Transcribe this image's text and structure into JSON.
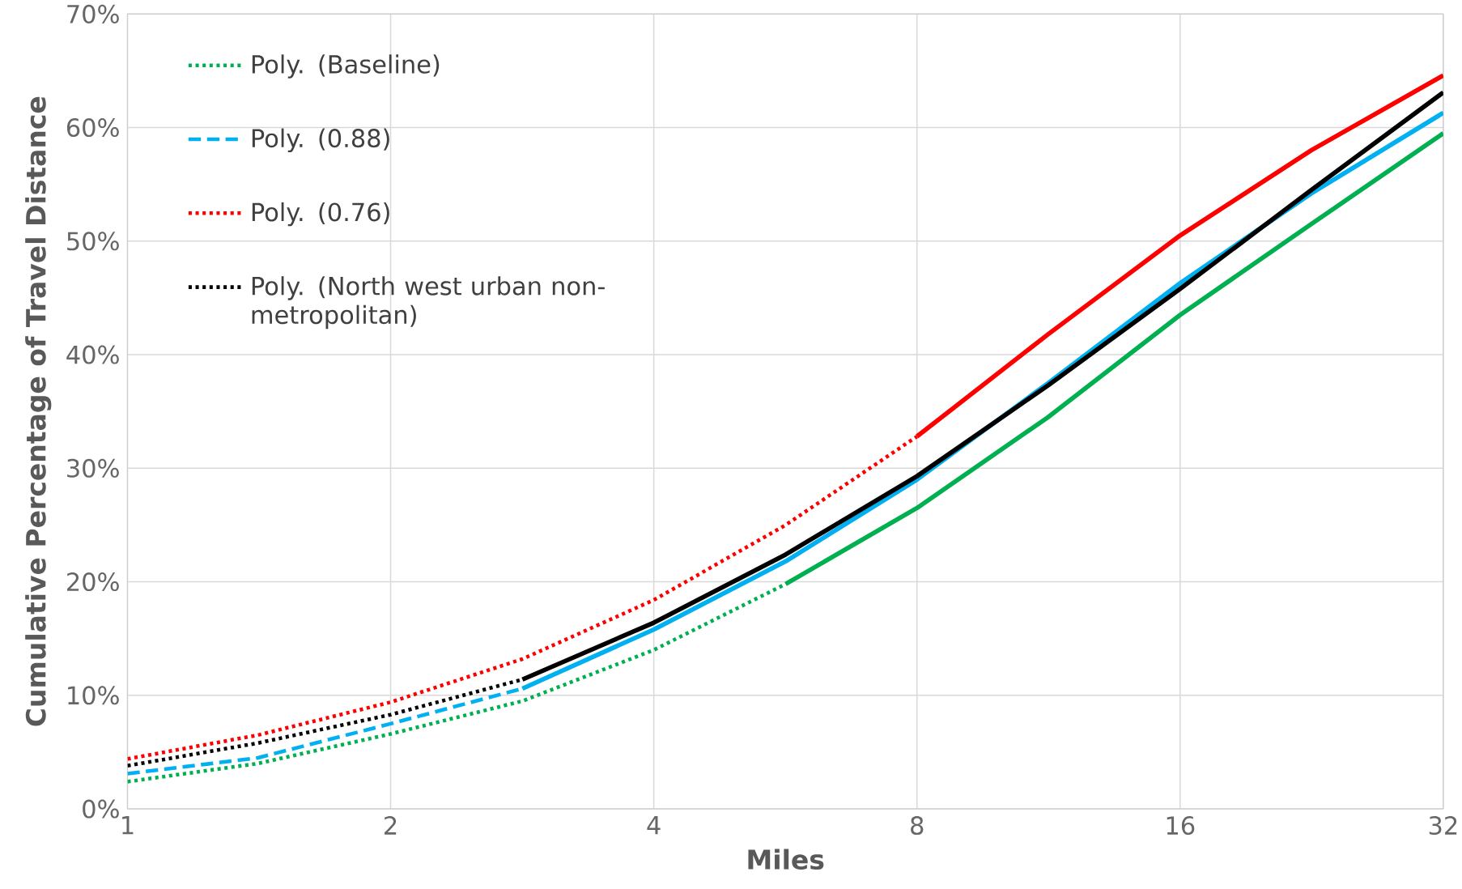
{
  "chart_data": {
    "type": "line",
    "xlabel": "Miles",
    "ylabel": "Cumulative Percentage of Travel Distance",
    "log": "x",
    "xlim": [
      1,
      32
    ],
    "xticks": [
      1,
      2,
      4,
      8,
      16,
      32
    ],
    "ylim": [
      0,
      70
    ],
    "yticks": [
      {
        "value": 0,
        "label": "0%"
      },
      {
        "value": 10,
        "label": "10%"
      },
      {
        "value": 20,
        "label": "20%"
      },
      {
        "value": 30,
        "label": "30%"
      },
      {
        "value": 40,
        "label": "40%"
      },
      {
        "value": 50,
        "label": "50%"
      },
      {
        "value": 60,
        "label": "60%"
      },
      {
        "value": 70,
        "label": "70%"
      }
    ],
    "grid": true,
    "legend": "top left",
    "marker": "none",
    "series": [
      {
        "name": "Poly. (Baseline)",
        "color": "#00b050",
        "line_style": "dotted",
        "x": [
          1,
          1.41,
          2,
          2.83,
          4,
          5.66
        ],
        "values": [
          2.4,
          4.0,
          6.6,
          9.5,
          14.0,
          19.8
        ]
      },
      {
        "color": "#00b050",
        "line_style": "solid",
        "x": [
          5.66,
          8,
          11.3,
          16,
          22.6,
          32
        ],
        "values": [
          19.8,
          26.5,
          34.5,
          43.5,
          51.5,
          59.5
        ]
      },
      {
        "name": "Poly. (0.88)",
        "color": "#00b0f0",
        "line_style": "dashed",
        "x": [
          1,
          1.41,
          2,
          2.83
        ],
        "values": [
          3.1,
          4.5,
          7.5,
          10.6
        ]
      },
      {
        "color": "#00b0f0",
        "line_style": "solid",
        "x": [
          2.83,
          4,
          5.66,
          8,
          11.3,
          16,
          22.6,
          32
        ],
        "values": [
          10.6,
          15.8,
          21.8,
          29.0,
          37.5,
          46.3,
          54.2,
          61.3
        ]
      },
      {
        "name": "Poly. (0.76)",
        "color": "#ff0000",
        "line_style": "dotted",
        "x": [
          1,
          1.41,
          2,
          2.83,
          4,
          5.66,
          8
        ],
        "values": [
          4.4,
          6.5,
          9.4,
          13.2,
          18.4,
          25.0,
          32.8
        ]
      },
      {
        "color": "#ff0000",
        "line_style": "solid",
        "x": [
          8,
          11.3,
          16,
          22.6,
          32
        ],
        "values": [
          32.8,
          41.8,
          50.5,
          58.0,
          64.6
        ]
      },
      {
        "name": "Poly. (North west urban non-metropolitan)",
        "color": "#000000",
        "line_style": "dotted",
        "x": [
          1,
          1.41,
          2,
          2.83
        ],
        "values": [
          3.8,
          5.8,
          8.3,
          11.4
        ]
      },
      {
        "color": "#000000",
        "line_style": "solid",
        "x": [
          2.83,
          4,
          5.66,
          8,
          11.3,
          16,
          22.6,
          32
        ],
        "values": [
          11.4,
          16.4,
          22.4,
          29.3,
          37.3,
          45.8,
          54.5,
          63.1
        ]
      }
    ]
  }
}
